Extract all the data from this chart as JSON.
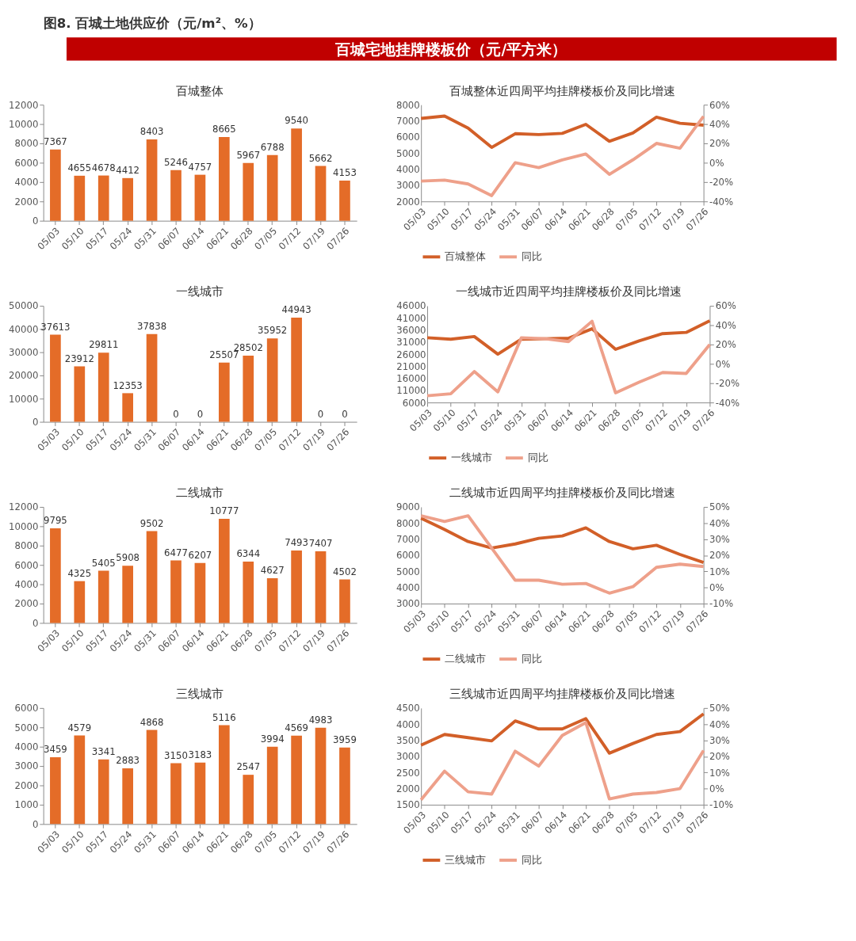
{
  "chart_data": [
    {
      "type": "other",
      "title": "图8. 百城土地供应价（元/m²、%）",
      "subtitle": "百城宅地挂牌楼板价（元/平方米）"
    },
    {
      "type": "bar",
      "title": "百城整体",
      "categories": [
        "05/03",
        "05/10",
        "05/17",
        "05/24",
        "05/31",
        "06/07",
        "06/14",
        "06/21",
        "06/28",
        "07/05",
        "07/12",
        "07/19",
        "07/26"
      ],
      "values": [
        7367,
        4655,
        4678,
        4412,
        8403,
        5246,
        4757,
        8665,
        5967,
        6788,
        9540,
        5662,
        4153
      ],
      "color": "#e46c28",
      "ylim": [
        0,
        12000
      ],
      "yticks": [
        0,
        2000,
        4000,
        6000,
        8000,
        10000,
        12000
      ],
      "data_labels": true,
      "grid": false
    },
    {
      "type": "line",
      "title": "百城整体近四周平均挂牌楼板价及同比增速",
      "categories": [
        "05/03",
        "05/10",
        "05/17",
        "05/24",
        "05/31",
        "06/07",
        "06/14",
        "06/21",
        "06/28",
        "07/05",
        "07/12",
        "07/19",
        "07/26"
      ],
      "series": [
        {
          "name": "百城整体",
          "color": "#d25f28",
          "values": [
            7150,
            7300,
            6550,
            5350,
            6200,
            6150,
            6220,
            6780,
            5730,
            6250,
            7230,
            6850,
            6730
          ]
        },
        {
          "name": "同比",
          "color": "#eea08a",
          "axis": "y2",
          "values": [
            -19,
            -18,
            -22,
            -34,
            0,
            -5,
            3,
            9,
            -12,
            3,
            20,
            15,
            48
          ]
        }
      ],
      "ylim": [
        2000,
        8000
      ],
      "yticks": [
        2000,
        3000,
        4000,
        5000,
        6000,
        7000,
        8000
      ],
      "y2lim": [
        -40,
        60
      ],
      "y2ticks": [
        {
          "value": -40,
          "label": "-40%"
        },
        {
          "value": -20,
          "label": "-20%"
        },
        {
          "value": 0,
          "label": "0%"
        },
        {
          "value": 20,
          "label": "20%"
        },
        {
          "value": 40,
          "label": "40%"
        },
        {
          "value": 60,
          "label": "60%"
        }
      ],
      "line_style": "solid",
      "grid": false,
      "legend": "bottom"
    },
    {
      "type": "bar",
      "title": "一线城市",
      "categories": [
        "05/03",
        "05/10",
        "05/17",
        "05/24",
        "05/31",
        "06/07",
        "06/14",
        "06/21",
        "06/28",
        "07/05",
        "07/12",
        "07/19",
        "07/26"
      ],
      "values": [
        37613,
        23912,
        29811,
        12353,
        37838,
        0,
        0,
        25507,
        28502,
        35952,
        44943,
        0,
        0
      ],
      "color": "#e46c28",
      "ylim": [
        0,
        50000
      ],
      "yticks": [
        0,
        10000,
        20000,
        30000,
        40000,
        50000
      ],
      "data_labels": true,
      "grid": false
    },
    {
      "type": "line",
      "title": "一线城市近四周平均挂牌楼板价及同比增速",
      "categories": [
        "05/03",
        "05/10",
        "05/17",
        "05/24",
        "05/31",
        "06/07",
        "06/14",
        "06/21",
        "06/28",
        "07/05",
        "07/12",
        "07/19",
        "07/26"
      ],
      "series": [
        {
          "name": "一线城市",
          "color": "#d25f28",
          "values": [
            32800,
            32200,
            33300,
            26000,
            32200,
            32400,
            32600,
            36500,
            28000,
            31500,
            34500,
            35000,
            39800
          ]
        },
        {
          "name": "同比",
          "color": "#eea08a",
          "axis": "y2",
          "values": [
            -33,
            -31,
            -8,
            -29,
            27,
            26,
            23,
            44,
            -30,
            -19,
            -9,
            -10,
            20
          ]
        }
      ],
      "ylim": [
        6000,
        46000
      ],
      "yticks": [
        6000,
        11000,
        16000,
        21000,
        26000,
        31000,
        36000,
        41000,
        46000
      ],
      "y2lim": [
        -40,
        60
      ],
      "y2ticks": [
        {
          "value": -40,
          "label": "-40%"
        },
        {
          "value": -20,
          "label": "-20%"
        },
        {
          "value": 0,
          "label": "0%"
        },
        {
          "value": 20,
          "label": "20%"
        },
        {
          "value": 40,
          "label": "40%"
        },
        {
          "value": 60,
          "label": "60%"
        }
      ],
      "line_style": "solid",
      "grid": false,
      "legend": "bottom"
    },
    {
      "type": "bar",
      "title": "二线城市",
      "categories": [
        "05/03",
        "05/10",
        "05/17",
        "05/24",
        "05/31",
        "06/07",
        "06/14",
        "06/21",
        "06/28",
        "07/05",
        "07/12",
        "07/19",
        "07/26"
      ],
      "values": [
        9795,
        4325,
        5405,
        5908,
        9502,
        6477,
        6207,
        10777,
        6344,
        4627,
        7493,
        7407,
        4502
      ],
      "color": "#e46c28",
      "ylim": [
        0,
        12000
      ],
      "yticks": [
        0,
        2000,
        4000,
        6000,
        8000,
        10000,
        12000
      ],
      "data_labels": true,
      "grid": false
    },
    {
      "type": "line",
      "title": "二线城市近四周平均挂牌楼板价及同比增速",
      "categories": [
        "05/03",
        "05/10",
        "05/17",
        "05/24",
        "05/31",
        "06/07",
        "06/14",
        "06/21",
        "06/28",
        "07/05",
        "07/12",
        "07/19",
        "07/26"
      ],
      "series": [
        {
          "name": "二线城市",
          "color": "#d25f28",
          "values": [
            8300,
            7600,
            6850,
            6450,
            6700,
            7050,
            7200,
            7700,
            6850,
            6400,
            6620,
            6050,
            5550
          ]
        },
        {
          "name": "同比",
          "color": "#eea08a",
          "axis": "y2",
          "values": [
            44.5,
            41,
            44.5,
            24.5,
            4.5,
            4.5,
            2,
            2.5,
            -3.5,
            0.5,
            12.5,
            14.5,
            13
          ]
        }
      ],
      "ylim": [
        3000,
        9000
      ],
      "yticks": [
        3000,
        4000,
        5000,
        6000,
        7000,
        8000,
        9000
      ],
      "y2lim": [
        -10,
        50
      ],
      "y2ticks": [
        {
          "value": -10,
          "label": "-10%"
        },
        {
          "value": 0,
          "label": "0%"
        },
        {
          "value": 10,
          "label": "10%"
        },
        {
          "value": 20,
          "label": "20%"
        },
        {
          "value": 30,
          "label": "30%"
        },
        {
          "value": 40,
          "label": "40%"
        },
        {
          "value": 50,
          "label": "50%"
        }
      ],
      "line_style": "solid",
      "grid": false,
      "legend": "bottom"
    },
    {
      "type": "bar",
      "title": "三线城市",
      "categories": [
        "05/03",
        "05/10",
        "05/17",
        "05/24",
        "05/31",
        "06/07",
        "06/14",
        "06/21",
        "06/28",
        "07/05",
        "07/12",
        "07/19",
        "07/26"
      ],
      "values": [
        3459,
        4579,
        3341,
        2883,
        4868,
        3150,
        3183,
        5116,
        2547,
        3994,
        4569,
        4983,
        3959
      ],
      "color": "#e46c28",
      "ylim": [
        0,
        6000
      ],
      "yticks": [
        0,
        1000,
        2000,
        3000,
        4000,
        5000,
        6000
      ],
      "data_labels": true,
      "grid": false
    },
    {
      "type": "line",
      "title": "三线城市近四周平均挂牌楼板价及同比增速",
      "categories": [
        "05/03",
        "05/10",
        "05/17",
        "05/24",
        "05/31",
        "06/07",
        "06/14",
        "06/21",
        "06/28",
        "07/05",
        "07/12",
        "07/19",
        "07/26"
      ],
      "series": [
        {
          "name": "三线城市",
          "color": "#d25f28",
          "values": [
            3350,
            3680,
            3580,
            3480,
            4100,
            3850,
            3850,
            4170,
            3100,
            3400,
            3680,
            3770,
            4320
          ]
        },
        {
          "name": "同比",
          "color": "#eea08a",
          "axis": "y2",
          "values": [
            -7,
            10.8,
            -2,
            -3.4,
            23.2,
            14,
            33,
            41,
            -6.4,
            -3.4,
            -2.4,
            0,
            23.6
          ]
        }
      ],
      "ylim": [
        1500,
        4500
      ],
      "yticks": [
        1500,
        2000,
        2500,
        3000,
        3500,
        4000,
        4500
      ],
      "y2lim": [
        -10,
        50
      ],
      "y2ticks": [
        {
          "value": -10,
          "label": "-10%"
        },
        {
          "value": 0,
          "label": "0%"
        },
        {
          "value": 10,
          "label": "10%"
        },
        {
          "value": 20,
          "label": "20%"
        },
        {
          "value": 30,
          "label": "30%"
        },
        {
          "value": 40,
          "label": "40%"
        },
        {
          "value": 50,
          "label": "50%"
        }
      ],
      "line_style": "solid",
      "grid": false,
      "legend": "bottom"
    }
  ]
}
